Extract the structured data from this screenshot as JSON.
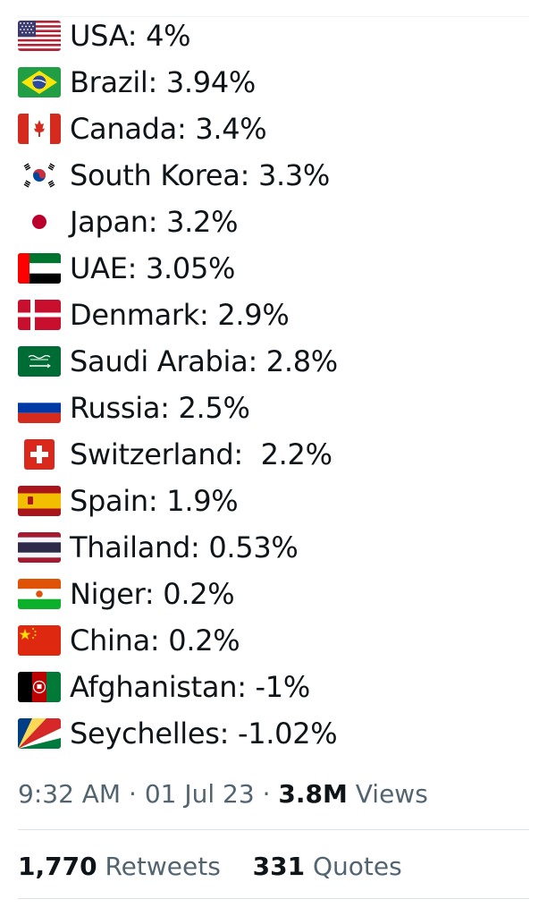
{
  "tweet": {
    "lines": [
      {
        "flag": "usa-flag-icon",
        "text": "USA: 4%"
      },
      {
        "flag": "brazil-flag-icon",
        "text": "Brazil: 3.94%"
      },
      {
        "flag": "canada-flag-icon",
        "text": "Canada: 3.4%"
      },
      {
        "flag": "south-korea-flag-icon",
        "text": "South Korea: 3.3%"
      },
      {
        "flag": "japan-flag-icon",
        "text": "Japan: 3.2%"
      },
      {
        "flag": "uae-flag-icon",
        "text": "UAE: 3.05%"
      },
      {
        "flag": "denmark-flag-icon",
        "text": "Denmark: 2.9%"
      },
      {
        "flag": "saudi-arabia-flag-icon",
        "text": "Saudi Arabia: 2.8%"
      },
      {
        "flag": "russia-flag-icon",
        "text": "Russia: 2.5%"
      },
      {
        "flag": "switzerland-flag-icon",
        "text": "Switzerland:  2.2%"
      },
      {
        "flag": "spain-flag-icon",
        "text": "Spain: 1.9%"
      },
      {
        "flag": "thailand-flag-icon",
        "text": "Thailand: 0.53%"
      },
      {
        "flag": "niger-flag-icon",
        "text": "Niger: 0.2%"
      },
      {
        "flag": "china-flag-icon",
        "text": "China: 0.2%"
      },
      {
        "flag": "afghanistan-flag-icon",
        "text": "Afghanistan: -1%"
      },
      {
        "flag": "seychelles-flag-icon",
        "text": "Seychelles: -1.02%"
      }
    ]
  },
  "meta": {
    "time": "9:32 AM",
    "separator": "·",
    "date": "01 Jul 23",
    "views_count": "3.8M",
    "views_label": "Views"
  },
  "stats": {
    "retweets_count": "1,770",
    "retweets_label": "Retweets",
    "quotes_count": "331",
    "quotes_label": "Quotes"
  },
  "colors": {
    "text_primary": "#0f1419",
    "text_secondary": "#536471",
    "divider": "#dde3e6"
  }
}
